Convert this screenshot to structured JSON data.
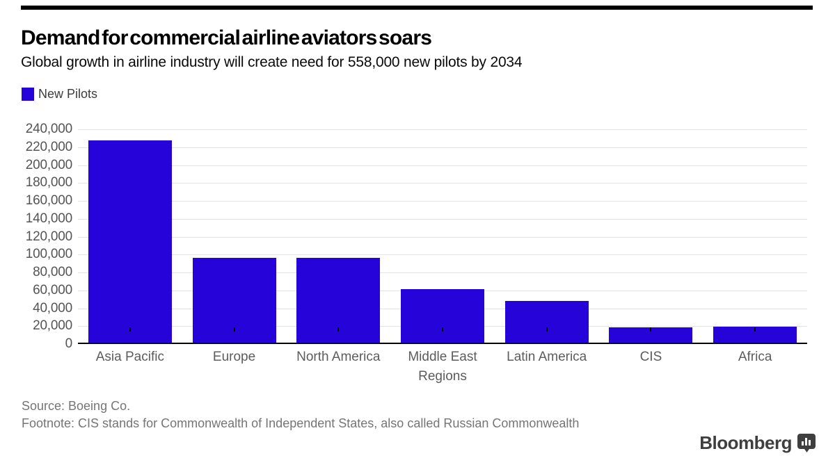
{
  "page": {
    "background": "#ffffff",
    "top_rule_color": "#000000"
  },
  "header": {
    "title": "Demand for commercial airline aviators soars",
    "subtitle": "Global growth in airline industry will create need for 558,000 new pilots by 2034"
  },
  "legend": {
    "items": [
      {
        "label": "New Pilots",
        "color": "#2503d9"
      }
    ]
  },
  "chart_data": {
    "type": "bar",
    "title": "Demand for commercial airline aviators soars",
    "subtitle": "Global growth in airline industry will create need for 558,000 new pilots by 2034",
    "series_name": "New Pilots",
    "categories": [
      "Asia Pacific",
      "Europe",
      "North America",
      "Middle East",
      "Latin America",
      "CIS",
      "Africa"
    ],
    "values": [
      226000,
      95000,
      95000,
      60000,
      47000,
      17000,
      18000
    ],
    "xlabel": "Regions",
    "ylabel": "",
    "ylim": [
      0,
      240000
    ],
    "yticks": [
      0,
      20000,
      40000,
      60000,
      80000,
      100000,
      120000,
      140000,
      160000,
      180000,
      200000,
      220000,
      240000
    ],
    "grid": true,
    "gridline_color": "#e3e3e3",
    "bar_color": "#2503d9",
    "axis_color": "#000000",
    "legend_position": "top-left"
  },
  "footer": {
    "source": "Source: Boeing Co.",
    "footnote": "Footnote: CIS stands for Commonwealth of Independent States, also called Russian Commonwealth"
  },
  "branding": {
    "logo_text": "Bloomberg",
    "logo_icon": "bar-chart-bubble-icon"
  }
}
